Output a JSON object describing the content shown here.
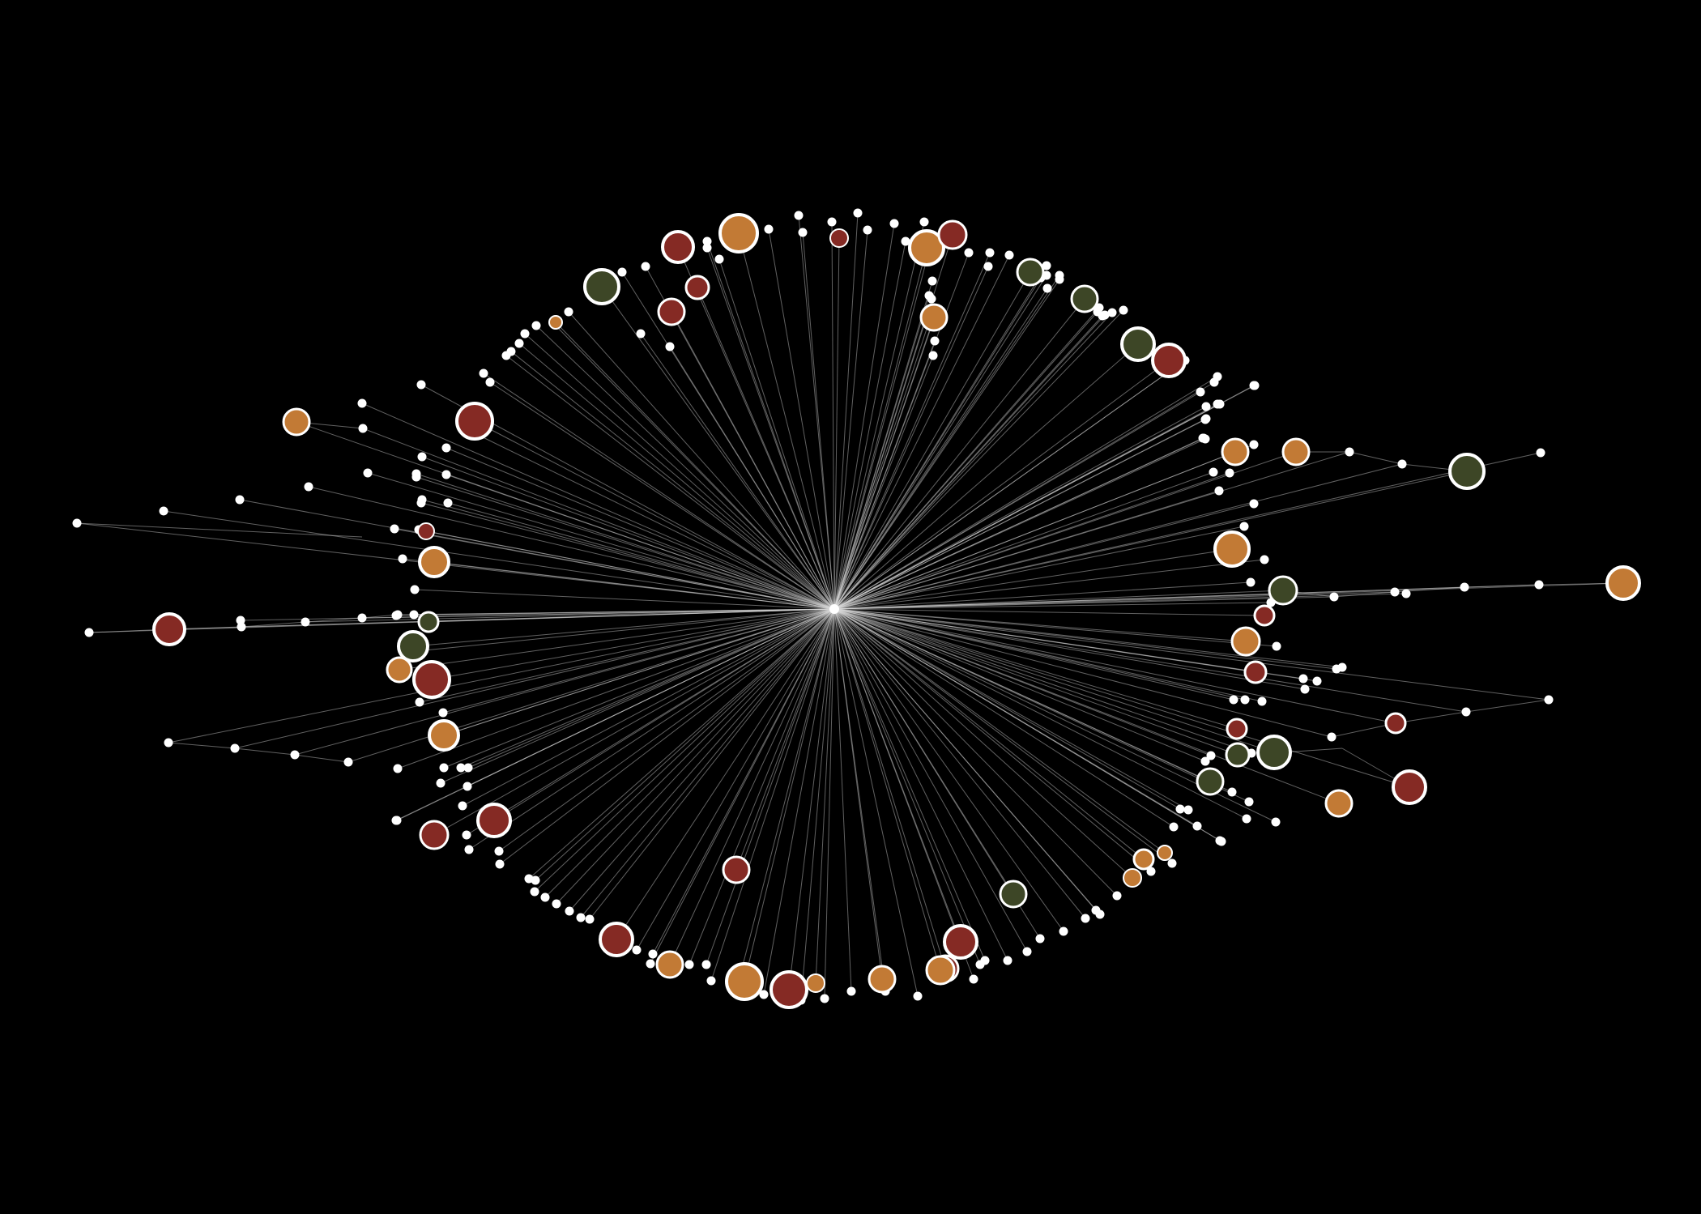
{
  "colors": {
    "background": "#000000",
    "edge": "#d8d8d8",
    "node_stroke": "#ffffff",
    "leaf": "#ffffff",
    "hub": "#ffffff",
    "orange": "#c27a35",
    "red": "#852a24",
    "green": "#3d4626"
  },
  "legend_note": "",
  "graph": {
    "hub_count": 1,
    "leaf_node_count": 182,
    "colored_node_count": 58,
    "colored_nodes_by_color": {
      "orange": 25,
      "red": 21,
      "green": 12
    }
  }
}
